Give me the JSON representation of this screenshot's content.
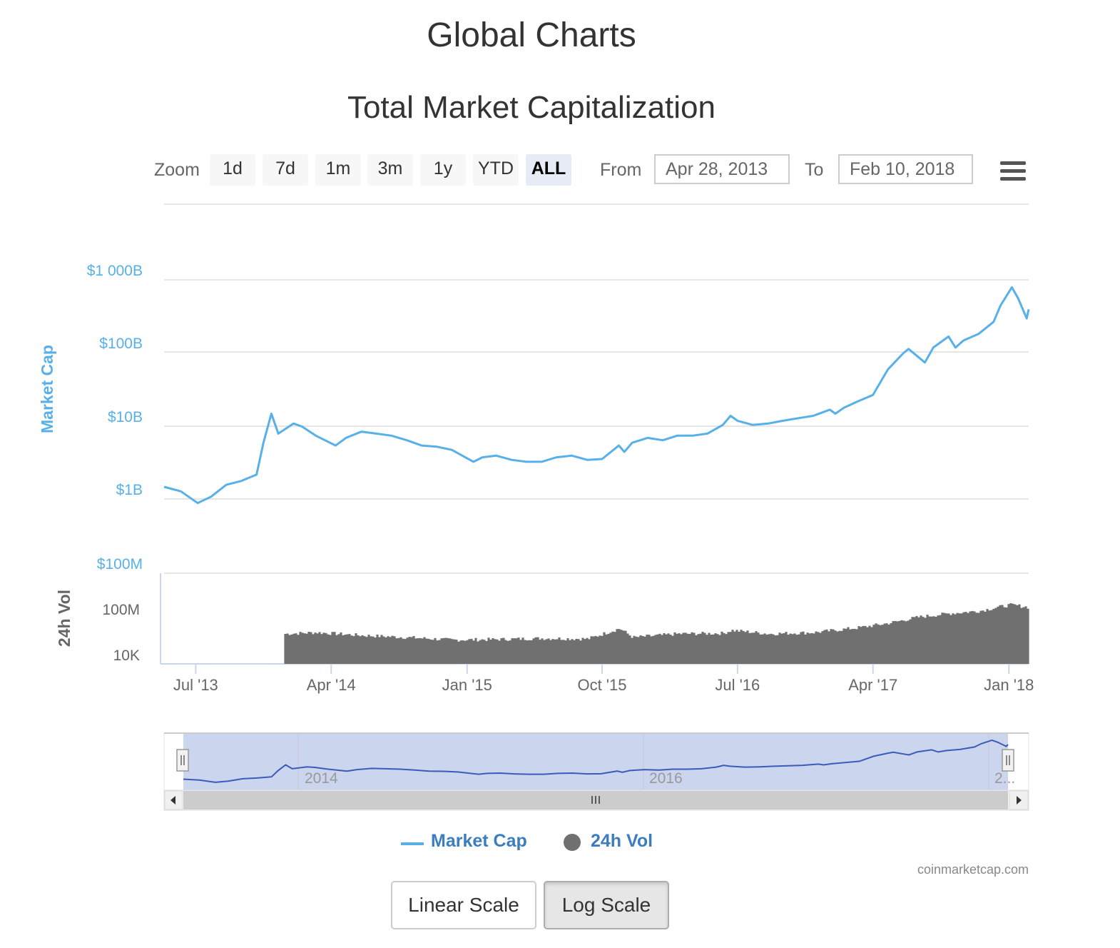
{
  "page_title": "Global Charts",
  "chart_title": "Total Market Capitalization",
  "toolbar": {
    "zoom_label": "Zoom",
    "zoom_buttons": [
      "1d",
      "7d",
      "1m",
      "3m",
      "1y",
      "YTD",
      "ALL"
    ],
    "active_zoom": "ALL",
    "from_label": "From",
    "from_value": "Apr 28, 2013",
    "to_label": "To",
    "to_value": "Feb 10, 2018",
    "menu_icon": "hamburger-menu-icon"
  },
  "chart_data": [
    {
      "type": "line",
      "series": [
        {
          "name": "Market Cap",
          "color": "#57b1e8",
          "x": [
            "2013-04-28",
            "2013-06-01",
            "2013-07-05",
            "2013-08-01",
            "2013-09-01",
            "2013-10-01",
            "2013-11-01",
            "2013-11-15",
            "2013-12-01",
            "2013-12-15",
            "2014-01-15",
            "2014-02-01",
            "2014-03-01",
            "2014-04-10",
            "2014-05-01",
            "2014-06-01",
            "2014-07-01",
            "2014-08-01",
            "2014-09-01",
            "2014-10-01",
            "2014-11-01",
            "2014-12-01",
            "2015-01-14",
            "2015-02-01",
            "2015-03-01",
            "2015-04-01",
            "2015-05-01",
            "2015-06-01",
            "2015-07-01",
            "2015-08-01",
            "2015-09-01",
            "2015-10-01",
            "2015-11-04",
            "2015-11-15",
            "2015-12-01",
            "2016-01-01",
            "2016-02-01",
            "2016-03-01",
            "2016-04-01",
            "2016-05-01",
            "2016-06-01",
            "2016-06-17",
            "2016-07-01",
            "2016-08-01",
            "2016-09-01",
            "2016-10-01",
            "2016-11-01",
            "2016-12-01",
            "2017-01-04",
            "2017-01-15",
            "2017-02-01",
            "2017-03-01",
            "2017-04-01",
            "2017-05-01",
            "2017-06-01",
            "2017-06-12",
            "2017-07-15",
            "2017-08-01",
            "2017-09-01",
            "2017-09-15",
            "2017-10-01",
            "2017-11-01",
            "2017-12-01",
            "2017-12-15",
            "2018-01-07",
            "2018-01-20",
            "2018-02-06",
            "2018-02-10"
          ],
          "values": [
            1.5,
            1.3,
            0.9,
            1.1,
            1.6,
            1.8,
            2.2,
            6.0,
            15.0,
            8.0,
            11.0,
            10.0,
            7.5,
            5.5,
            7.0,
            8.5,
            8.0,
            7.5,
            6.5,
            5.5,
            5.3,
            4.8,
            3.3,
            3.8,
            4.0,
            3.5,
            3.3,
            3.3,
            3.8,
            4.0,
            3.5,
            3.6,
            5.5,
            4.5,
            6.0,
            7.0,
            6.5,
            7.5,
            7.5,
            8.0,
            10.5,
            14.0,
            12.0,
            10.5,
            11.0,
            12.0,
            13.0,
            14.0,
            17.0,
            15.0,
            18.0,
            22.0,
            27.0,
            60.0,
            100.0,
            115.0,
            75.0,
            120.0,
            170.0,
            120.0,
            150.0,
            185.0,
            270.0,
            450.0,
            800.0,
            560.0,
            300.0,
            400.0
          ]
        }
      ],
      "xlabel": "",
      "ylabel": "Market Cap",
      "y_scale": "log",
      "y_ticks": [
        "$1B",
        "$10B",
        "$100B",
        "$1 000B"
      ],
      "ylim": [
        0.5,
        1300
      ],
      "x_ticks": [
        "Jul '13",
        "Apr '14",
        "Jan '15",
        "Oct '15",
        "Jul '16",
        "Apr '17",
        "Jan '18"
      ],
      "grid": true
    },
    {
      "type": "bar",
      "series": [
        {
          "name": "24h Vol",
          "color": "#707070",
          "x": [
            "2013-12-27",
            "2014-03-01",
            "2014-06-01",
            "2014-09-01",
            "2014-12-01",
            "2015-03-01",
            "2015-06-01",
            "2015-09-01",
            "2015-11-04",
            "2015-12-01",
            "2016-03-01",
            "2016-06-01",
            "2016-06-17",
            "2016-09-01",
            "2016-12-01",
            "2017-03-01",
            "2017-05-01",
            "2017-07-01",
            "2017-09-01",
            "2017-11-01",
            "2017-12-20",
            "2018-01-05",
            "2018-02-10"
          ],
          "values": [
            30000,
            35000,
            25000,
            20000,
            15000,
            16000,
            18000,
            17000,
            55000,
            20000,
            30000,
            32000,
            45000,
            30000,
            35000,
            60000,
            100000,
            200000,
            300000,
            400000,
            700000,
            800000,
            600000
          ]
        }
      ],
      "ylabel": "24h Vol",
      "y_scale": "log",
      "y_ticks": [
        "10K",
        "100M",
        "$100M"
      ],
      "grid": true
    }
  ],
  "navigator": {
    "labels": [
      "2014",
      "2016",
      "2..."
    ]
  },
  "legend": {
    "market_cap_label": "Market Cap",
    "vol_label": "24h Vol"
  },
  "credit": "coinmarketcap.com",
  "scale_buttons": {
    "linear": "Linear Scale",
    "log": "Log Scale",
    "active": "log"
  }
}
